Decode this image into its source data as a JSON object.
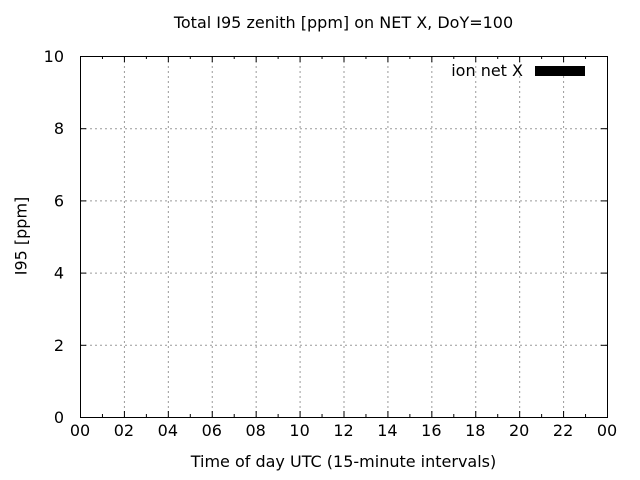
{
  "chart_data": {
    "type": "line",
    "title": "Total I95 zenith [ppm] on NET X, DoY=100",
    "xlabel": "Time of day UTC (15-minute intervals)",
    "ylabel": "I95 [ppm]",
    "xlim": [
      0,
      24
    ],
    "ylim": [
      0,
      10
    ],
    "x_major_ticks": [
      0,
      2,
      4,
      6,
      8,
      10,
      12,
      14,
      16,
      18,
      20,
      22,
      24
    ],
    "x_tick_labels": [
      "00",
      "02",
      "04",
      "06",
      "08",
      "10",
      "12",
      "14",
      "16",
      "18",
      "20",
      "22",
      "00"
    ],
    "x_minor_ticks": [
      1,
      3,
      5,
      7,
      9,
      11,
      13,
      15,
      17,
      19,
      21,
      23
    ],
    "y_major_ticks": [
      0,
      2,
      4,
      6,
      8,
      10
    ],
    "y_tick_labels": [
      "0",
      "2",
      "4",
      "6",
      "8",
      "10"
    ],
    "grid": true,
    "grid_color": "#9a9a9a",
    "axis_color": "#000000",
    "legend": {
      "position": "top-right",
      "entries": [
        {
          "label": "ion net X",
          "color": "#000000"
        }
      ]
    },
    "series": [
      {
        "name": "ion net X",
        "x": [],
        "y": []
      }
    ]
  }
}
